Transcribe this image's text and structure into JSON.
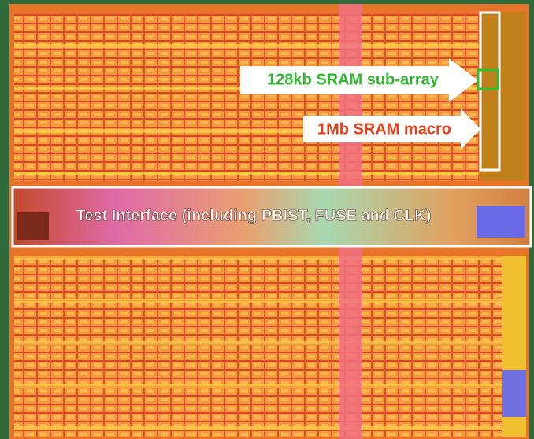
{
  "annotations": {
    "sub_array": "128kb SRAM sub-array",
    "macro": "1Mb SRAM macro",
    "test_interface": "Test Interface (including PBIST, FUSE and CLK)"
  }
}
